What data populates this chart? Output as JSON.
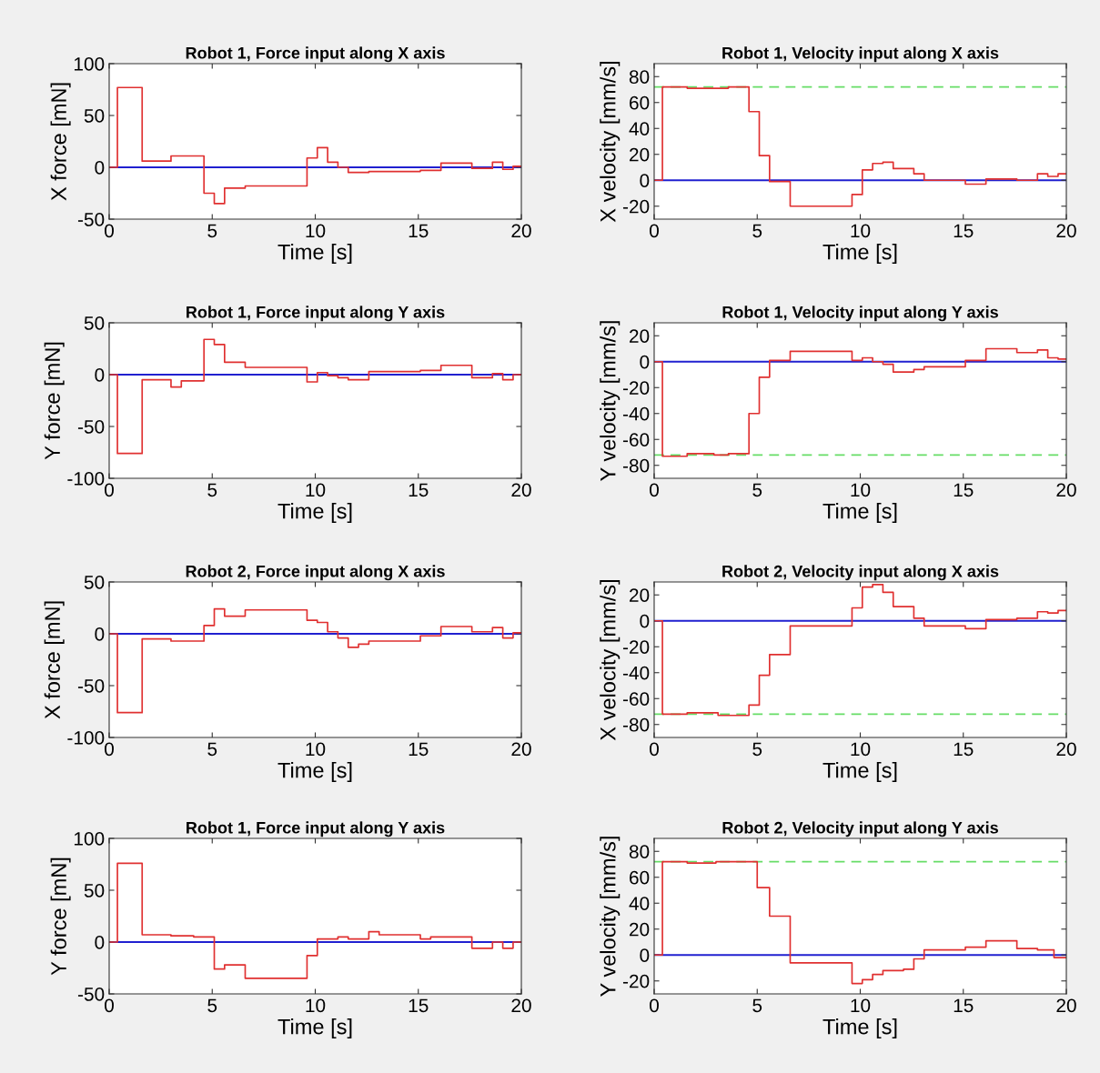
{
  "chart_data": [
    {
      "type": "step",
      "title": "Robot 1, Force input along X axis",
      "xlabel": "Time [s]",
      "ylabel": "X force [mN]",
      "xlim": [
        0,
        20
      ],
      "xticks": [
        0,
        5,
        10,
        15,
        20
      ],
      "ylim": [
        -50,
        100
      ],
      "yticks": [
        -50,
        0,
        50,
        100
      ],
      "series": [
        {
          "color": "#e03030",
          "x": [
            0,
            0.4,
            1.6,
            3.0,
            4.6,
            5.1,
            5.6,
            6.6,
            9.6,
            10.1,
            10.6,
            11.1,
            11.6,
            12.6,
            15.1,
            16.1,
            17.6,
            18.6,
            19.1,
            19.6,
            20
          ],
          "values": [
            0,
            77,
            6,
            11,
            -25,
            -35,
            -20,
            -18,
            9,
            19,
            5,
            0,
            -5,
            -4,
            -3,
            4,
            -1,
            5,
            -2,
            1,
            1
          ]
        }
      ],
      "ref_lines": [
        {
          "axis": "y",
          "value": 0,
          "color": "#2020d0",
          "line_style": "solid"
        }
      ]
    },
    {
      "type": "step",
      "title": "Robot 1, Velocity input along X axis",
      "xlabel": "Time [s]",
      "ylabel": "X velocity [mm/s]",
      "xlim": [
        0,
        20
      ],
      "xticks": [
        0,
        5,
        10,
        15,
        20
      ],
      "ylim": [
        -30,
        90
      ],
      "yticks": [
        -20,
        0,
        20,
        40,
        60,
        80
      ],
      "series": [
        {
          "color": "#e03030",
          "x": [
            0,
            0.4,
            1.6,
            3.6,
            4.6,
            5.1,
            5.6,
            6.6,
            9.6,
            10.1,
            10.6,
            11.1,
            11.6,
            12.6,
            13.1,
            15.1,
            16.1,
            17.6,
            18.6,
            19.1,
            19.6,
            20
          ],
          "values": [
            0,
            72,
            71,
            72,
            53,
            19,
            -1,
            -20,
            -11,
            8,
            13,
            14,
            9,
            5,
            0,
            -3,
            1,
            0,
            5,
            3,
            5,
            5
          ]
        }
      ],
      "ref_lines": [
        {
          "axis": "y",
          "value": 0,
          "color": "#2020d0",
          "line_style": "solid"
        },
        {
          "axis": "y",
          "value": 72,
          "color": "#66dd66",
          "line_style": "dashed"
        }
      ]
    },
    {
      "type": "step",
      "title": "Robot 1, Force input along Y axis",
      "xlabel": "Time [s]",
      "ylabel": "Y force [mN]",
      "xlim": [
        0,
        20
      ],
      "xticks": [
        0,
        5,
        10,
        15,
        20
      ],
      "ylim": [
        -100,
        50
      ],
      "yticks": [
        -100,
        -50,
        0,
        50
      ],
      "series": [
        {
          "color": "#e03030",
          "x": [
            0,
            0.4,
            1.6,
            3.0,
            3.5,
            4.6,
            5.1,
            5.6,
            6.6,
            9.6,
            10.1,
            10.6,
            11.1,
            11.6,
            12.6,
            15.1,
            16.1,
            17.6,
            18.6,
            19.1,
            19.6,
            20
          ],
          "values": [
            0,
            -76,
            -5,
            -12,
            -6,
            34,
            29,
            12,
            7,
            -7,
            2,
            -1,
            -3,
            -5,
            3,
            4,
            9,
            -3,
            1,
            -5,
            0,
            0
          ]
        }
      ],
      "ref_lines": [
        {
          "axis": "y",
          "value": 0,
          "color": "#2020d0",
          "line_style": "solid"
        }
      ]
    },
    {
      "type": "step",
      "title": "Robot 1, Velocity input along Y axis",
      "xlabel": "Time [s]",
      "ylabel": "Y velocity [mm/s]",
      "xlim": [
        0,
        20
      ],
      "xticks": [
        0,
        5,
        10,
        15,
        20
      ],
      "ylim": [
        -90,
        30
      ],
      "yticks": [
        -80,
        -60,
        -40,
        -20,
        0,
        20
      ],
      "series": [
        {
          "color": "#e03030",
          "x": [
            0,
            0.4,
            1.6,
            2.9,
            3.6,
            4.6,
            5.1,
            5.6,
            6.6,
            9.6,
            10.1,
            10.6,
            11.1,
            11.6,
            12.6,
            13.1,
            15.1,
            16.1,
            17.6,
            18.6,
            19.1,
            19.6,
            20
          ],
          "values": [
            0,
            -73,
            -71,
            -72,
            -71,
            -40,
            -12,
            1,
            8,
            1,
            3,
            0,
            -2,
            -8,
            -6,
            -4,
            1,
            10,
            7,
            9,
            3,
            2,
            2
          ]
        }
      ],
      "ref_lines": [
        {
          "axis": "y",
          "value": 0,
          "color": "#2020d0",
          "line_style": "solid"
        },
        {
          "axis": "y",
          "value": -72,
          "color": "#66dd66",
          "line_style": "dashed"
        }
      ]
    },
    {
      "type": "step",
      "title": "Robot 2, Force input along X axis",
      "xlabel": "Time [s]",
      "ylabel": "X force [mN]",
      "xlim": [
        0,
        20
      ],
      "xticks": [
        0,
        5,
        10,
        15,
        20
      ],
      "ylim": [
        -100,
        50
      ],
      "yticks": [
        -100,
        -50,
        0,
        50
      ],
      "series": [
        {
          "color": "#e03030",
          "x": [
            0,
            0.4,
            1.6,
            3.0,
            4.6,
            5.1,
            5.6,
            6.6,
            9.6,
            10.1,
            10.6,
            11.1,
            11.6,
            12.1,
            12.6,
            15.1,
            16.1,
            17.6,
            18.6,
            19.1,
            19.6,
            20
          ],
          "values": [
            0,
            -76,
            -5,
            -7,
            8,
            24,
            17,
            23,
            13,
            11,
            2,
            -4,
            -13,
            -10,
            -7,
            -2,
            7,
            2,
            6,
            -4,
            1,
            1
          ]
        }
      ],
      "ref_lines": [
        {
          "axis": "y",
          "value": 0,
          "color": "#2020d0",
          "line_style": "solid"
        }
      ]
    },
    {
      "type": "step",
      "title": "Robot 2, Velocity input along X axis",
      "xlabel": "Time [s]",
      "ylabel": "X velocity [mm/s]",
      "xlim": [
        0,
        20
      ],
      "xticks": [
        0,
        5,
        10,
        15,
        20
      ],
      "ylim": [
        -90,
        30
      ],
      "yticks": [
        -80,
        -60,
        -40,
        -20,
        0,
        20
      ],
      "series": [
        {
          "color": "#e03030",
          "x": [
            0,
            0.4,
            1.6,
            3.1,
            4.6,
            5.1,
            5.6,
            6.6,
            9.6,
            10.1,
            10.6,
            11.1,
            11.6,
            12.6,
            13.1,
            15.1,
            16.1,
            17.6,
            18.6,
            19.1,
            19.6,
            20
          ],
          "values": [
            0,
            -72,
            -71,
            -73,
            -65,
            -42,
            -26,
            -4,
            10,
            26,
            28,
            22,
            11,
            2,
            -4,
            -6,
            1,
            2,
            7,
            6,
            8,
            8
          ]
        }
      ],
      "ref_lines": [
        {
          "axis": "y",
          "value": 0,
          "color": "#2020d0",
          "line_style": "solid"
        },
        {
          "axis": "y",
          "value": -72,
          "color": "#66dd66",
          "line_style": "dashed"
        }
      ]
    },
    {
      "type": "step",
      "title": "Robot 1, Force input along Y axis",
      "xlabel": "Time [s]",
      "ylabel": "Y force [mN]",
      "xlim": [
        0,
        20
      ],
      "xticks": [
        0,
        5,
        10,
        15,
        20
      ],
      "ylim": [
        -50,
        100
      ],
      "yticks": [
        -50,
        0,
        50,
        100
      ],
      "series": [
        {
          "color": "#e03030",
          "x": [
            0,
            0.4,
            1.6,
            3.0,
            4.1,
            5.1,
            5.6,
            6.6,
            9.6,
            10.1,
            11.1,
            11.6,
            12.6,
            13.1,
            15.1,
            15.6,
            17.6,
            18.6,
            19.1,
            19.6,
            20
          ],
          "values": [
            0,
            76,
            7,
            6,
            5,
            -26,
            -22,
            -35,
            -13,
            3,
            5,
            3,
            10,
            7,
            3,
            5,
            -6,
            0,
            -6,
            0,
            0
          ]
        }
      ],
      "ref_lines": [
        {
          "axis": "y",
          "value": 0,
          "color": "#2020d0",
          "line_style": "solid"
        }
      ]
    },
    {
      "type": "step",
      "title": "Robot 2, Velocity input along Y axis",
      "xlabel": "Time [s]",
      "ylabel": "Y velocity [mm/s]",
      "xlim": [
        0,
        20
      ],
      "xticks": [
        0,
        5,
        10,
        15,
        20
      ],
      "ylim": [
        -30,
        90
      ],
      "yticks": [
        -20,
        0,
        20,
        40,
        60,
        80
      ],
      "series": [
        {
          "color": "#e03030",
          "x": [
            0,
            0.4,
            1.6,
            3.0,
            5.0,
            5.6,
            6.6,
            9.6,
            10.1,
            10.6,
            11.1,
            12.1,
            12.6,
            13.1,
            15.1,
            16.1,
            17.6,
            18.6,
            19.4,
            20
          ],
          "values": [
            0,
            72,
            71,
            72,
            52,
            30,
            -6,
            -22,
            -19,
            -15,
            -12,
            -11,
            -3,
            4,
            6,
            11,
            5,
            4,
            -2,
            -2
          ]
        }
      ],
      "ref_lines": [
        {
          "axis": "y",
          "value": 0,
          "color": "#2020d0",
          "line_style": "solid"
        },
        {
          "axis": "y",
          "value": 72,
          "color": "#66dd66",
          "line_style": "dashed"
        }
      ]
    }
  ]
}
